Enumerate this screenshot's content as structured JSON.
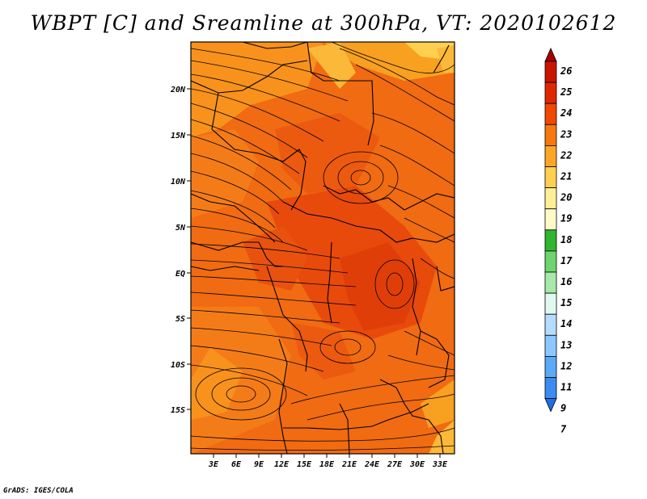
{
  "title": "WBPT [C] and Sreamline at 300hPa, VT: 2020102612",
  "credit": "GrADS: IGES/COLA",
  "map": {
    "lat_ticks": [
      "20N",
      "15N",
      "10N",
      "5N",
      "EQ",
      "5S",
      "10S",
      "15S"
    ],
    "lon_ticks": [
      "3E",
      "6E",
      "9E",
      "12E",
      "15E",
      "18E",
      "21E",
      "24E",
      "27E",
      "30E",
      "33E"
    ]
  },
  "colorbar": {
    "levels": [
      "26",
      "25",
      "24",
      "23",
      "22",
      "21",
      "20",
      "19",
      "18",
      "17",
      "16",
      "15",
      "14",
      "13",
      "12",
      "11",
      "9",
      "7"
    ],
    "colors": [
      "#a50000",
      "#c81400",
      "#e02800",
      "#f04a00",
      "#f87810",
      "#fca628",
      "#ffd050",
      "#ffee96",
      "#fffac8",
      "#2fb52f",
      "#6fd46f",
      "#a8e8a8",
      "#e0f8f0",
      "#b4dcff",
      "#8cc8ff",
      "#5aaaf5",
      "#3c8cf0",
      "#1e6ee6"
    ]
  }
}
